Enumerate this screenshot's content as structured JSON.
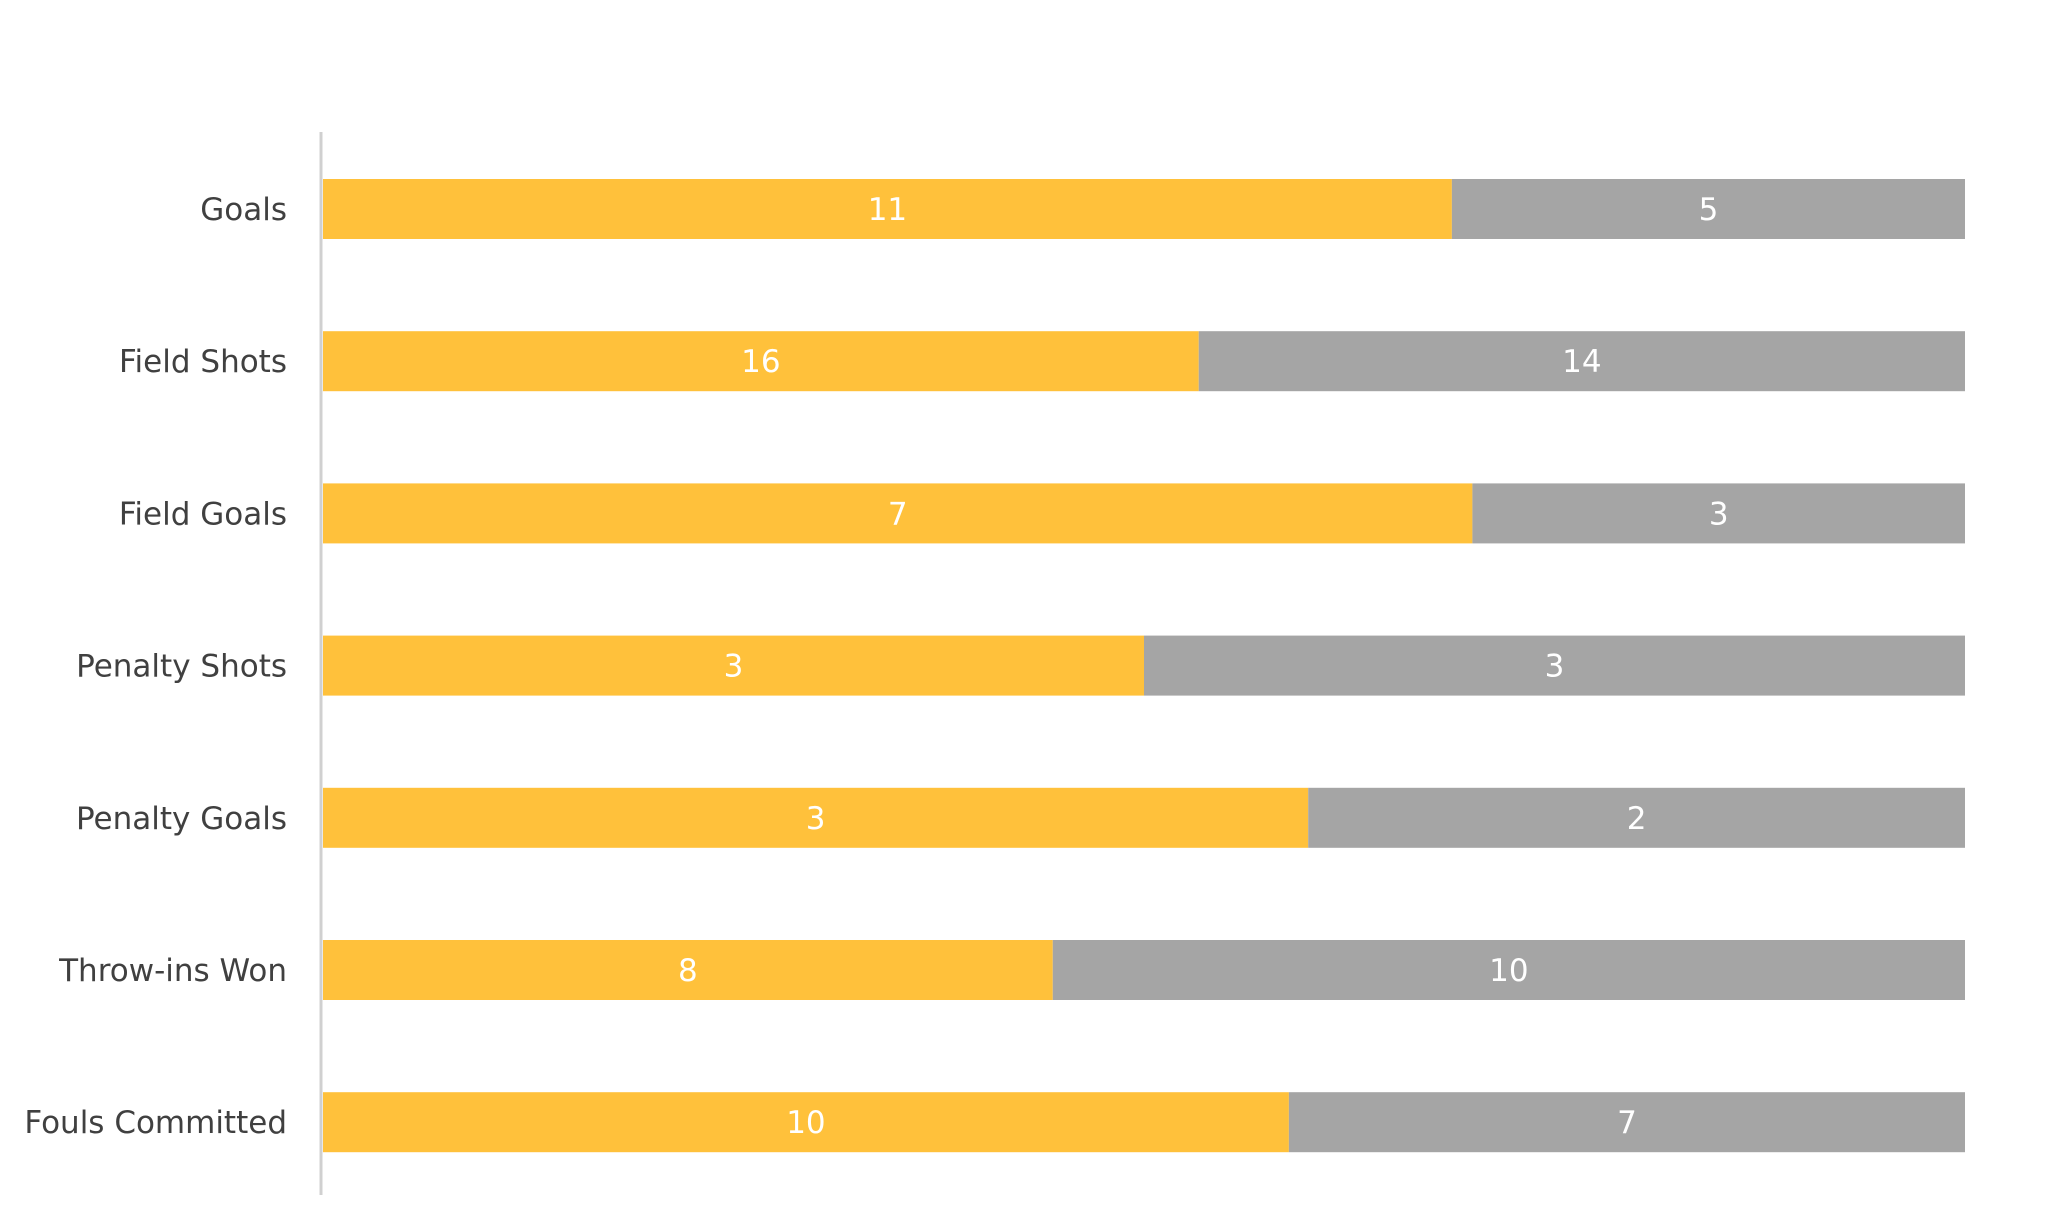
{
  "chart_data": {
    "type": "bar",
    "orientation": "horizontal",
    "stacking": "percent",
    "title": "",
    "xlabel": "",
    "ylabel": "",
    "grid": false,
    "legend": "none",
    "categories": [
      "Goals",
      "Field Shots",
      "Field Goals",
      "Penalty Shots",
      "Penalty Goals",
      "Throw-ins Won",
      "Fouls Committed"
    ],
    "series": [
      {
        "color": "#FFC13B",
        "values": [
          11,
          16,
          7,
          3,
          3,
          8,
          10
        ]
      },
      {
        "color": "#A5A5A5",
        "values": [
          5,
          14,
          3,
          3,
          2,
          10,
          7
        ]
      }
    ],
    "data_labels": true
  }
}
